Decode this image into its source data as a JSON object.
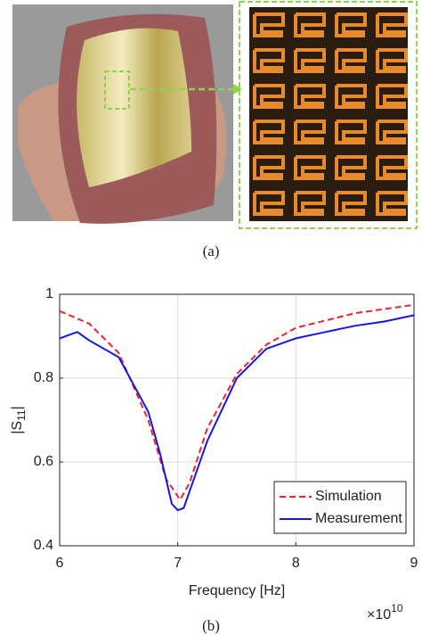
{
  "captions": {
    "a": "(a)",
    "b": "(b)"
  },
  "chart_data": {
    "type": "line",
    "xlabel": "Frequency [Hz]",
    "x_multiplier": "×10",
    "x_multiplier_exponent": "10",
    "ylabel_parts": [
      "|S",
      "11",
      "|"
    ],
    "xlim": [
      6,
      9
    ],
    "xticks": [
      6,
      7,
      8,
      9
    ],
    "ylim": [
      0.4,
      1
    ],
    "yticks": [
      0.4,
      0.6,
      0.8,
      1
    ],
    "grid": true,
    "legend": "lower right",
    "series": [
      {
        "name": "Simulation",
        "color": "#e8262a",
        "dash": true,
        "x": [
          6,
          6.25,
          6.5,
          6.75,
          6.9,
          7.02,
          7.1,
          7.25,
          7.5,
          7.75,
          8,
          8.5,
          9
        ],
        "values": [
          0.96,
          0.93,
          0.86,
          0.7,
          0.56,
          0.51,
          0.55,
          0.68,
          0.81,
          0.88,
          0.92,
          0.955,
          0.975
        ]
      },
      {
        "name": "Measurement",
        "color": "#1616e6",
        "dash": false,
        "x": [
          6,
          6.1,
          6.15,
          6.25,
          6.5,
          6.75,
          6.85,
          6.95,
          7,
          7.05,
          7.15,
          7.25,
          7.5,
          7.75,
          8,
          8.25,
          8.5,
          8.75,
          9
        ],
        "values": [
          0.895,
          0.905,
          0.91,
          0.89,
          0.85,
          0.72,
          0.62,
          0.5,
          0.485,
          0.49,
          0.57,
          0.65,
          0.8,
          0.87,
          0.895,
          0.91,
          0.925,
          0.935,
          0.95
        ]
      }
    ]
  }
}
